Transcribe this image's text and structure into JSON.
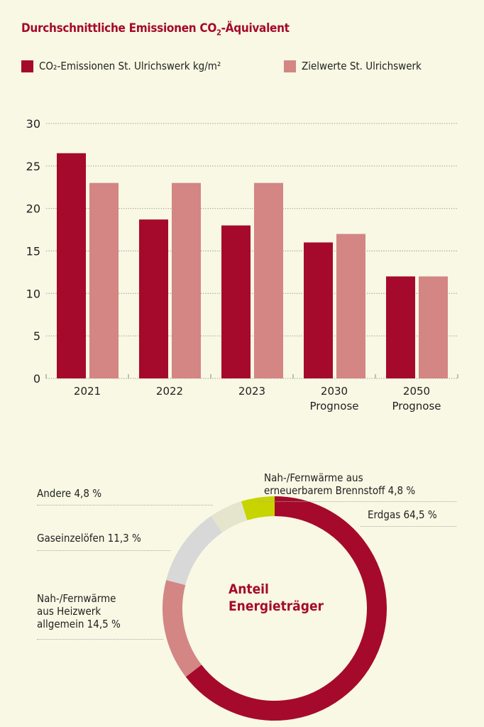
{
  "colors": {
    "emission": "#a50a2d",
    "target": "#d38683",
    "erdgas": "#a50a2d",
    "heizwerk": "#d38683",
    "gas": "#d8d8d8",
    "andere": "#e5e5cd",
    "erneuerbar": "#c8d400"
  },
  "chart_data": [
    {
      "type": "bar",
      "title_prefix": "Durchschnittliche Emissionen CO",
      "title_sub": "2",
      "title_suffix": "-Äquivalent",
      "categories": [
        [
          "2021"
        ],
        [
          "2022"
        ],
        [
          "2023"
        ],
        [
          "2030",
          "Prognose"
        ],
        [
          "2050",
          "Prognose"
        ]
      ],
      "series": [
        {
          "name": "CO₂-Emissionen St. Ulrichswerk kg/m²",
          "values": [
            26.5,
            18.7,
            18,
            16,
            12
          ]
        },
        {
          "name": "Zielwerte St. Ulrichswerk",
          "values": [
            23,
            23,
            23,
            17,
            12
          ]
        }
      ],
      "yticks": [
        "0",
        "5",
        "10",
        "15",
        "20",
        "25",
        "30"
      ],
      "ylim": [
        0,
        30
      ],
      "grid": true,
      "legend": "top"
    },
    {
      "type": "pie",
      "title_lines": [
        "Anteil",
        "Energieträger"
      ],
      "slices": [
        {
          "label": "Erdgas 64,5 %",
          "value": 64.5
        },
        {
          "label": "Nah-/Fernwärme aus Heizwerk allgemein 14,5 %",
          "lines": [
            "Nah-/Fernwärme",
            "aus Heizwerk",
            "allgemein 14,5 %"
          ],
          "value": 14.5
        },
        {
          "label": "Gaseinzelöfen 11,3 %",
          "value": 11.3
        },
        {
          "label": "Andere 4,8 %",
          "value": 4.8
        },
        {
          "label": "Nah-/Fernwärme aus erneuerbarem Brennstoff 4,8 %",
          "lines": [
            "Nah-/Fernwärme aus",
            "erneuerbarem Brennstoff 4,8 %"
          ],
          "value": 4.8
        }
      ]
    }
  ]
}
